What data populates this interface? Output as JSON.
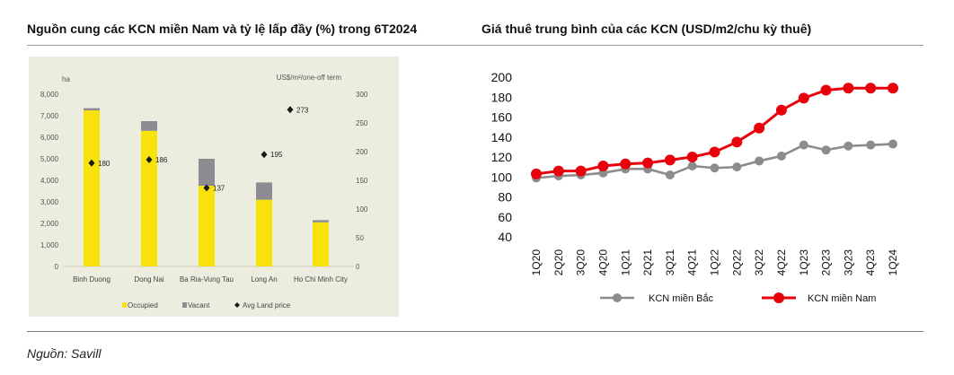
{
  "titles": {
    "left": "Nguồn cung các KCN miền Nam và tỷ lệ lấp đầy (%) trong 6T2024",
    "right": "Giá thuê trung bình của các KCN (USD/m2/chu kỳ thuê)"
  },
  "source": "Nguồn: Savill",
  "colors": {
    "occupied": "#f7e20c",
    "vacant": "#8c8c92",
    "price_marker": "#1a1a1a",
    "panel_bg": "#ededdf",
    "north": "#8c8c8c",
    "south": "#e8000b"
  },
  "chart_data": [
    {
      "type": "bar",
      "stacked": true,
      "categories": [
        "Binh Duong",
        "Dong Nai",
        "Ba Ria-Vung Tau",
        "Long An",
        "Ho Chi Minh City"
      ],
      "left_unit": "ha",
      "right_unit": "US$/m²/one-off term",
      "ylim": [
        0,
        8000
      ],
      "yticks": [
        "0",
        "1,000",
        "2,000",
        "3,000",
        "4,000",
        "5,000",
        "6,000",
        "7,000",
        "8,000"
      ],
      "y2lim": [
        0,
        300
      ],
      "y2ticks": [
        "0",
        "50",
        "100",
        "150",
        "200",
        "250",
        "300"
      ],
      "series": [
        {
          "name": "Occupied",
          "values": [
            7250,
            6300,
            3750,
            3100,
            2050
          ]
        },
        {
          "name": "Vacant",
          "values": [
            100,
            450,
            1250,
            800,
            100
          ]
        }
      ],
      "price_series": {
        "name": "Avg Land price",
        "values": [
          180,
          186,
          137,
          195,
          273
        ],
        "labels": [
          "180",
          "186",
          "137",
          "195",
          "273"
        ]
      },
      "legend": [
        "Occupied",
        "Vacant",
        "Avg Land price"
      ],
      "legend_position": "bottom",
      "grid": false
    },
    {
      "type": "line",
      "categories": [
        "1Q20",
        "2Q20",
        "3Q20",
        "4Q20",
        "1Q21",
        "2Q21",
        "3Q21",
        "4Q21",
        "1Q22",
        "2Q22",
        "3Q22",
        "4Q22",
        "1Q23",
        "2Q23",
        "3Q23",
        "4Q23",
        "1Q24"
      ],
      "ylim": [
        40,
        200
      ],
      "yticks": [
        "40",
        "60",
        "80",
        "100",
        "120",
        "140",
        "160",
        "180",
        "200"
      ],
      "series": [
        {
          "name": "KCN miền Bắc",
          "values": [
            99,
            101,
            102,
            104,
            108,
            108,
            102,
            111,
            109,
            110,
            116,
            121,
            132,
            127,
            131,
            132,
            133
          ]
        },
        {
          "name": "KCN miền Nam",
          "values": [
            103,
            106,
            106,
            111,
            113,
            114,
            117,
            120,
            125,
            135,
            149,
            167,
            179,
            187,
            189,
            189,
            189
          ]
        }
      ],
      "legend_position": "bottom",
      "grid": false
    }
  ]
}
